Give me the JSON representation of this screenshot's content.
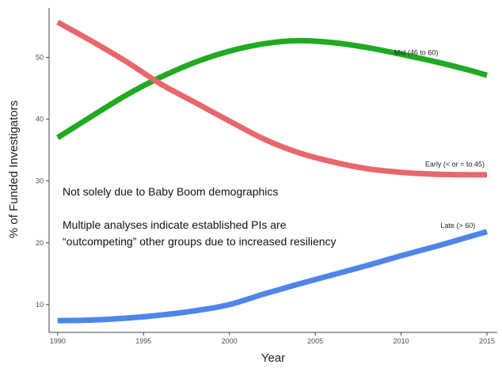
{
  "chart_data": {
    "type": "line",
    "title": "",
    "xlabel": "Year",
    "ylabel": "% of Funded Investigators",
    "xlim": [
      1989.5,
      2015.6
    ],
    "ylim": [
      5.5,
      58
    ],
    "x_ticks": [
      1990,
      1995,
      2000,
      2005,
      2010,
      2015
    ],
    "y_ticks": [
      10,
      20,
      30,
      40,
      50
    ],
    "grid": false,
    "legend": "none",
    "series": [
      {
        "name": "Mid (46 to 60)",
        "color": "#1faa22",
        "x": [
          1990,
          1992,
          1994,
          1996,
          1998,
          2000,
          2002,
          2004,
          2006,
          2008,
          2010,
          2012,
          2014,
          2015
        ],
        "y": [
          37,
          40.5,
          43.9,
          46.8,
          49.2,
          51.0,
          52.2,
          52.7,
          52.4,
          51.6,
          50.5,
          49.3,
          47.9,
          47.1
        ]
      },
      {
        "name": "Early (< or = to 45)",
        "color": "#e8676b",
        "x": [
          1990,
          1992,
          1994,
          1996,
          1998,
          2000,
          2002,
          2004,
          2006,
          2008,
          2010,
          2012,
          2014,
          2015
        ],
        "y": [
          55.7,
          52.6,
          49.3,
          45.7,
          42.7,
          39.7,
          36.8,
          34.6,
          33.1,
          32.0,
          31.4,
          31.1,
          31.0,
          31.0
        ]
      },
      {
        "name": "Late (> 60)",
        "color": "#4f85ea",
        "x": [
          1990,
          1992,
          1994,
          1996,
          1998,
          2000,
          2002,
          2004,
          2006,
          2008,
          2010,
          2012,
          2014,
          2015
        ],
        "y": [
          7.4,
          7.5,
          7.8,
          8.3,
          9.0,
          10.0,
          11.7,
          13.3,
          14.8,
          16.3,
          17.9,
          19.4,
          21.0,
          21.8
        ]
      }
    ],
    "series_labels": [
      {
        "text": "Mid (46 to 60)",
        "x": 2009.6,
        "y": 50.4
      },
      {
        "text": "Early (< or = to 45)",
        "x": 2011.4,
        "y": 32.3
      },
      {
        "text": "Late (> 60)",
        "x": 2012.3,
        "y": 22.4
      }
    ],
    "annotations": [
      "Not solely due to Baby Boom demographics",
      "Multiple analyses indicate established PIs are",
      "“outcompeting” other groups due to increased resiliency"
    ]
  }
}
